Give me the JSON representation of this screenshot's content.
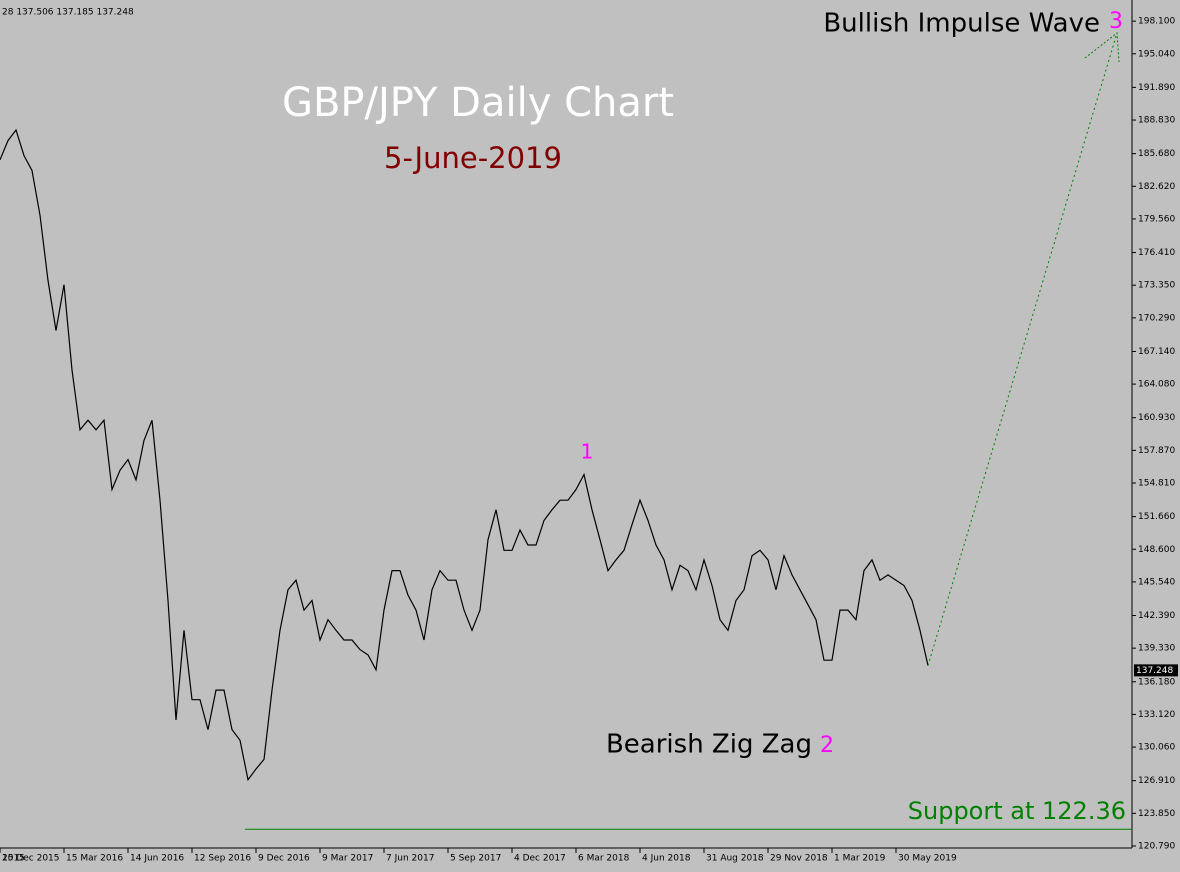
{
  "header_text": "28 137.506 137.185 137.248",
  "chart_data": {
    "type": "line",
    "title": "GBP/JPY Daily Chart",
    "subtitle": "5-June-2019",
    "categories": [
      "2015",
      null,
      null,
      null,
      "15 Dec 2015",
      null,
      null,
      null,
      null,
      null,
      null,
      null,
      "15 Mar 2016",
      null,
      null,
      null,
      null,
      null,
      null,
      null,
      "14 Jun 2016",
      null,
      null,
      null,
      null,
      null,
      null,
      null,
      "12 Sep 2016",
      null,
      null,
      null,
      null,
      null,
      null,
      null,
      "9 Dec 2016",
      null,
      null,
      null,
      null,
      null,
      null,
      null,
      "9 Mar 2017",
      null,
      null,
      null,
      null,
      null,
      null,
      null,
      "7 Jun 2017",
      null,
      null,
      null,
      null,
      null,
      null,
      null,
      "5 Sep 2017",
      null,
      null,
      null,
      null,
      null,
      null,
      null,
      "4 Dec 2017",
      null,
      null,
      null,
      null,
      null,
      null,
      null,
      "6 Mar 2018",
      null,
      null,
      null,
      null,
      null,
      null,
      null,
      "4 Jun 2018",
      null,
      null,
      null,
      null,
      null,
      null,
      null,
      "31 Aug 2018",
      null,
      null,
      null,
      null,
      null,
      null,
      null,
      "29 Nov 2018",
      null,
      null,
      null,
      null,
      null,
      null,
      null,
      "1 Mar 2019",
      null,
      null,
      null,
      null,
      null,
      null,
      null,
      "30 May 2019",
      null,
      null,
      null,
      null
    ],
    "series": [
      {
        "name": "GBP/JPY",
        "color": "#000000",
        "values": [
          null,
          null,
          null,
          null,
          185.1,
          186.9,
          187.9,
          185.5,
          184.1,
          179.9,
          173.8,
          169.1,
          173.4,
          165.4,
          159.8,
          160.7,
          159.8,
          160.7,
          154.2,
          156.0,
          157.0,
          155.1,
          158.8,
          160.7,
          153.2,
          143.8,
          132.6,
          141.0,
          134.5,
          134.5,
          131.7,
          135.4,
          135.4,
          131.7,
          130.7,
          127.0,
          128.0,
          128.9,
          135.4,
          141.0,
          144.8,
          145.7,
          142.9,
          143.8,
          140.1,
          142.0,
          141.0,
          140.1,
          140.1,
          139.2,
          138.7,
          137.3,
          142.9,
          146.6,
          146.6,
          144.3,
          142.9,
          140.1,
          144.8,
          146.6,
          145.7,
          145.7,
          142.9,
          141.0,
          142.9,
          149.5,
          152.3,
          148.5,
          148.5,
          150.4,
          149.0,
          149.0,
          151.3,
          152.3,
          153.2,
          153.2,
          154.2,
          155.6,
          152.3,
          149.5,
          146.6,
          147.6,
          148.5,
          150.9,
          153.2,
          151.3,
          149.0,
          147.6,
          144.8,
          147.1,
          146.6,
          144.8,
          147.6,
          145.2,
          142.0,
          141.0,
          143.8,
          144.8,
          148.0,
          148.5,
          147.6,
          144.8,
          148.0,
          146.2,
          144.8,
          143.4,
          142.0,
          138.2,
          138.2,
          142.9,
          142.9,
          142.0,
          146.6,
          147.6,
          145.7,
          146.2,
          145.7,
          145.2,
          143.8,
          141.0,
          137.7
        ]
      }
    ],
    "ylim": [
      120.6,
      199.8
    ],
    "yticks": [
      {
        "value": 198.1,
        "label": "198.100"
      },
      {
        "value": 195.04,
        "label": "195.040"
      },
      {
        "value": 191.89,
        "label": "191.890"
      },
      {
        "value": 188.83,
        "label": "188.830"
      },
      {
        "value": 185.68,
        "label": "185.680"
      },
      {
        "value": 182.62,
        "label": "182.620"
      },
      {
        "value": 179.56,
        "label": "179.560"
      },
      {
        "value": 176.41,
        "label": "176.410"
      },
      {
        "value": 173.35,
        "label": "173.350"
      },
      {
        "value": 170.29,
        "label": "170.290"
      },
      {
        "value": 167.14,
        "label": "167.140"
      },
      {
        "value": 164.08,
        "label": "164.080"
      },
      {
        "value": 160.93,
        "label": "160.930"
      },
      {
        "value": 157.87,
        "label": "157.870"
      },
      {
        "value": 154.81,
        "label": "154.810"
      },
      {
        "value": 151.66,
        "label": "151.660"
      },
      {
        "value": 148.6,
        "label": "148.600"
      },
      {
        "value": 145.54,
        "label": "145.540"
      },
      {
        "value": 142.39,
        "label": "142.390"
      },
      {
        "value": 139.33,
        "label": "139.330"
      },
      {
        "value": 136.18,
        "label": "136.180"
      },
      {
        "value": 133.12,
        "label": "133.120"
      },
      {
        "value": 130.06,
        "label": "130.060"
      },
      {
        "value": 126.91,
        "label": "126.910"
      },
      {
        "value": 123.85,
        "label": "123.850"
      },
      {
        "value": 120.79,
        "label": "120.790"
      }
    ],
    "current_price": {
      "value": 137.248,
      "label": "137.248"
    },
    "support_level": 122.36,
    "support_label": "Support at 122.36",
    "wave_1": "1",
    "wave_2_label": "Bearish Zig Zag",
    "wave_2": "2",
    "wave_3_label": "Bullish Impulse Wave",
    "wave_3": "3"
  }
}
